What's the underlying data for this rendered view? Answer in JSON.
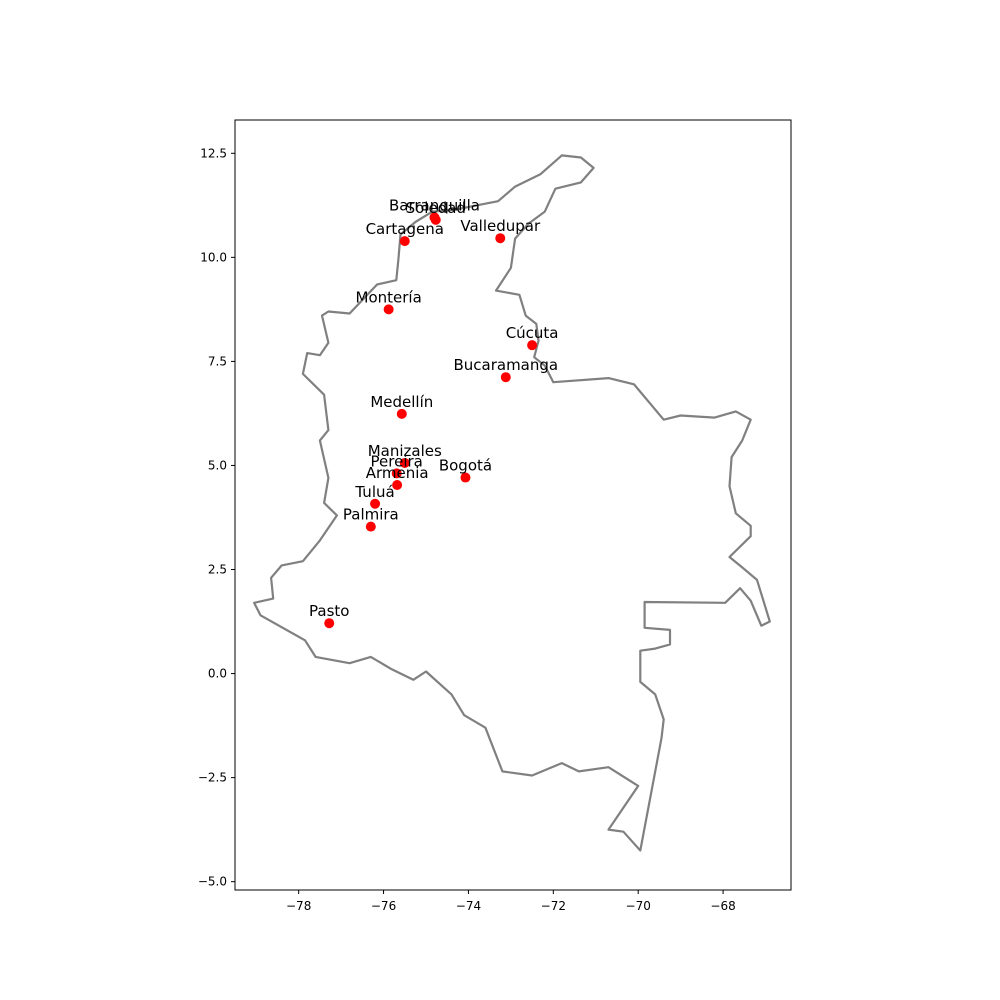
{
  "chart_data": {
    "type": "scatter",
    "title": "",
    "xlabel": "",
    "ylabel": "",
    "xlim": [
      -79.5,
      -66.4
    ],
    "ylim": [
      -5.2,
      13.3
    ],
    "xticks": [
      -78,
      -76,
      -74,
      -72,
      -70,
      -68
    ],
    "yticks": [
      -5.0,
      -2.5,
      0.0,
      2.5,
      5.0,
      7.5,
      10.0,
      12.5
    ],
    "xtick_labels": [
      "−78",
      "−76",
      "−74",
      "−72",
      "−70",
      "−68"
    ],
    "ytick_labels": [
      "−5.0",
      "−2.5",
      "0.0",
      "2.5",
      "5.0",
      "7.5",
      "10.0",
      "12.5"
    ],
    "grid": false,
    "point_color": "#ff0000",
    "outline_color": "#808080",
    "points": [
      {
        "name": "Barranquilla",
        "x": -74.8,
        "y": 10.96
      },
      {
        "name": "Soledad",
        "x": -74.77,
        "y": 10.9
      },
      {
        "name": "Cartagena",
        "x": -75.5,
        "y": 10.39
      },
      {
        "name": "Valledupar",
        "x": -73.25,
        "y": 10.46
      },
      {
        "name": "Montería",
        "x": -75.88,
        "y": 8.75
      },
      {
        "name": "Cúcuta",
        "x": -72.5,
        "y": 7.89
      },
      {
        "name": "Bucaramanga",
        "x": -73.12,
        "y": 7.12
      },
      {
        "name": "Medellín",
        "x": -75.57,
        "y": 6.24
      },
      {
        "name": "Manizales",
        "x": -75.5,
        "y": 5.06
      },
      {
        "name": "Pereira",
        "x": -75.69,
        "y": 4.81
      },
      {
        "name": "Bogotá",
        "x": -74.07,
        "y": 4.71
      },
      {
        "name": "Armenia",
        "x": -75.68,
        "y": 4.53
      },
      {
        "name": "Tuluá",
        "x": -76.2,
        "y": 4.08
      },
      {
        "name": "Palmira",
        "x": -76.3,
        "y": 3.53
      },
      {
        "name": "Pasto",
        "x": -77.28,
        "y": 1.21
      }
    ],
    "outline": [
      [
        -71.8,
        12.45
      ],
      [
        -71.35,
        12.4
      ],
      [
        -71.05,
        12.15
      ],
      [
        -71.35,
        11.8
      ],
      [
        -71.95,
        11.65
      ],
      [
        -72.2,
        11.1
      ],
      [
        -72.6,
        10.8
      ],
      [
        -72.9,
        10.45
      ],
      [
        -73.0,
        9.75
      ],
      [
        -73.35,
        9.2
      ],
      [
        -72.8,
        9.1
      ],
      [
        -72.65,
        8.6
      ],
      [
        -72.4,
        8.4
      ],
      [
        -72.35,
        8.0
      ],
      [
        -72.45,
        7.6
      ],
      [
        -72.2,
        7.4
      ],
      [
        -72.0,
        7.0
      ],
      [
        -70.7,
        7.1
      ],
      [
        -70.1,
        6.95
      ],
      [
        -69.4,
        6.1
      ],
      [
        -69.0,
        6.2
      ],
      [
        -68.2,
        6.15
      ],
      [
        -67.7,
        6.3
      ],
      [
        -67.35,
        6.1
      ],
      [
        -67.55,
        5.6
      ],
      [
        -67.8,
        5.2
      ],
      [
        -67.85,
        4.5
      ],
      [
        -67.7,
        3.85
      ],
      [
        -67.35,
        3.55
      ],
      [
        -67.35,
        3.3
      ],
      [
        -67.85,
        2.8
      ],
      [
        -67.55,
        2.55
      ],
      [
        -67.2,
        2.25
      ],
      [
        -66.9,
        1.25
      ],
      [
        -67.1,
        1.15
      ],
      [
        -67.35,
        1.75
      ],
      [
        -67.6,
        2.05
      ],
      [
        -67.95,
        1.7
      ],
      [
        -69.85,
        1.72
      ],
      [
        -69.85,
        1.1
      ],
      [
        -69.25,
        1.05
      ],
      [
        -69.25,
        0.7
      ],
      [
        -69.6,
        0.6
      ],
      [
        -69.95,
        0.55
      ],
      [
        -69.95,
        -0.2
      ],
      [
        -69.6,
        -0.5
      ],
      [
        -69.4,
        -1.1
      ],
      [
        -69.45,
        -1.55
      ],
      [
        -69.95,
        -4.25
      ],
      [
        -70.35,
        -3.8
      ],
      [
        -70.7,
        -3.75
      ],
      [
        -70.0,
        -2.7
      ],
      [
        -70.7,
        -2.25
      ],
      [
        -71.4,
        -2.35
      ],
      [
        -71.8,
        -2.15
      ],
      [
        -72.5,
        -2.45
      ],
      [
        -73.2,
        -2.35
      ],
      [
        -73.6,
        -1.3
      ],
      [
        -74.1,
        -1.0
      ],
      [
        -74.4,
        -0.5
      ],
      [
        -75.0,
        0.05
      ],
      [
        -75.3,
        -0.15
      ],
      [
        -75.8,
        0.1
      ],
      [
        -76.3,
        0.4
      ],
      [
        -76.8,
        0.25
      ],
      [
        -77.6,
        0.4
      ],
      [
        -77.85,
        0.8
      ],
      [
        -78.9,
        1.4
      ],
      [
        -79.05,
        1.7
      ],
      [
        -78.6,
        1.8
      ],
      [
        -78.65,
        2.3
      ],
      [
        -78.4,
        2.6
      ],
      [
        -77.9,
        2.7
      ],
      [
        -77.5,
        3.2
      ],
      [
        -77.1,
        3.8
      ],
      [
        -77.4,
        4.1
      ],
      [
        -77.3,
        4.7
      ],
      [
        -77.5,
        5.6
      ],
      [
        -77.3,
        5.85
      ],
      [
        -77.4,
        6.7
      ],
      [
        -77.9,
        7.2
      ],
      [
        -77.8,
        7.7
      ],
      [
        -77.5,
        7.65
      ],
      [
        -77.3,
        7.95
      ],
      [
        -77.45,
        8.6
      ],
      [
        -77.3,
        8.7
      ],
      [
        -76.8,
        8.65
      ],
      [
        -76.15,
        9.35
      ],
      [
        -75.7,
        9.45
      ],
      [
        -75.65,
        9.95
      ],
      [
        -75.6,
        10.55
      ],
      [
        -75.25,
        10.85
      ],
      [
        -74.85,
        11.1
      ],
      [
        -74.3,
        11.15
      ],
      [
        -73.8,
        11.25
      ],
      [
        -73.3,
        11.35
      ],
      [
        -72.9,
        11.7
      ],
      [
        -72.3,
        12.0
      ],
      [
        -71.8,
        12.45
      ]
    ]
  }
}
